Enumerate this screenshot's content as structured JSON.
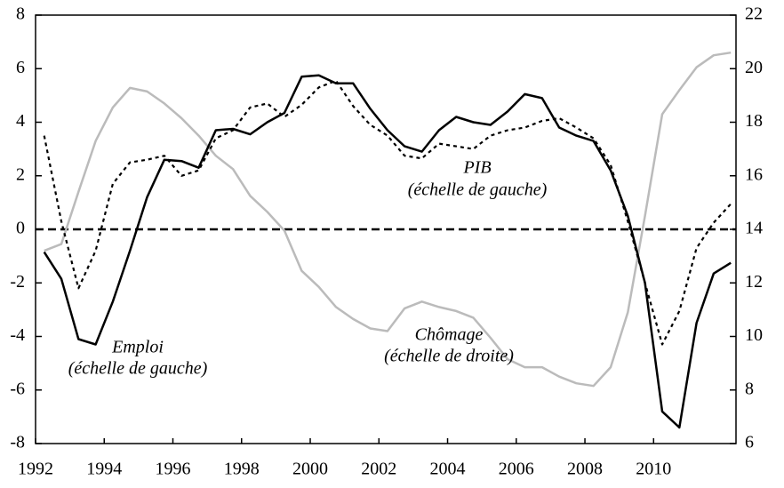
{
  "chart_data": {
    "type": "line",
    "x": [
      1992.25,
      1992.75,
      1993.25,
      1993.75,
      1994.25,
      1994.75,
      1995.25,
      1995.75,
      1996.25,
      1996.75,
      1997.25,
      1997.75,
      1998.25,
      1998.75,
      1999.25,
      1999.75,
      2000.25,
      2000.75,
      2001.25,
      2001.75,
      2002.25,
      2002.75,
      2003.25,
      2003.75,
      2004.25,
      2004.75,
      2005.25,
      2005.75,
      2006.25,
      2006.75,
      2007.25,
      2007.75,
      2008.25,
      2008.75,
      2009.25,
      2009.75,
      2010.25,
      2010.75,
      2011.25,
      2011.75,
      2012.25
    ],
    "series": [
      {
        "color": "#000000",
        "style": "solid",
        "values": [
          -0.85,
          -1.85,
          -4.1,
          -4.3,
          -2.7,
          -0.8,
          1.2,
          2.6,
          2.55,
          2.3,
          3.7,
          3.75,
          3.55,
          4.0,
          4.35,
          5.7,
          5.75,
          5.45,
          5.45,
          4.5,
          3.7,
          3.1,
          2.9,
          3.7,
          4.2,
          4.0,
          3.9,
          4.4,
          5.05,
          4.9,
          3.8,
          3.5,
          3.3,
          2.2,
          0.5,
          -2.0,
          -6.8,
          -7.4,
          -3.5,
          -1.65,
          -1.25
        ]
      },
      {
        "color": "#000000",
        "style": "dotted",
        "values": [
          3.5,
          0.3,
          -2.2,
          -0.8,
          1.7,
          2.5,
          2.6,
          2.75,
          2.0,
          2.2,
          3.4,
          3.7,
          4.55,
          4.7,
          4.2,
          4.65,
          5.3,
          5.55,
          4.6,
          3.9,
          3.5,
          2.75,
          2.65,
          3.2,
          3.1,
          3.0,
          3.5,
          3.7,
          3.8,
          4.05,
          4.15,
          3.8,
          3.4,
          2.4,
          0.3,
          -2.0,
          -4.3,
          -3.05,
          -0.7,
          0.25,
          0.95
        ]
      },
      {
        "color": "#bbbbbb",
        "style": "solid",
        "axis": "y2",
        "values": [
          13.2,
          13.45,
          15.4,
          17.3,
          18.55,
          19.28,
          19.15,
          18.7,
          18.15,
          17.5,
          16.75,
          16.25,
          15.25,
          14.65,
          13.95,
          12.45,
          11.85,
          11.1,
          10.65,
          10.3,
          10.2,
          11.05,
          11.3,
          11.1,
          10.95,
          10.7,
          9.95,
          9.15,
          8.85,
          8.85,
          8.5,
          8.25,
          8.15,
          8.85,
          10.9,
          14.5,
          18.3,
          19.2,
          20.05,
          20.5,
          20.6
        ]
      }
    ],
    "xlim": [
      1992,
      2012.4
    ],
    "xticks": [
      1992,
      1994,
      1996,
      1998,
      2000,
      2002,
      2004,
      2006,
      2008,
      2010
    ],
    "ylim": [
      -8,
      8
    ],
    "yticks": [
      -8,
      -6,
      -4,
      -2,
      0,
      2,
      4,
      6,
      8
    ],
    "y2lim": [
      6,
      22
    ],
    "y2ticks": [
      6,
      8,
      10,
      12,
      14,
      16,
      18,
      20,
      22
    ],
    "hline": 0,
    "annotations": [
      "PIB",
      "(échelle de gauche)",
      "Emploi",
      "(échelle de gauche)",
      "Chômage",
      "(échelle de droite)"
    ]
  }
}
